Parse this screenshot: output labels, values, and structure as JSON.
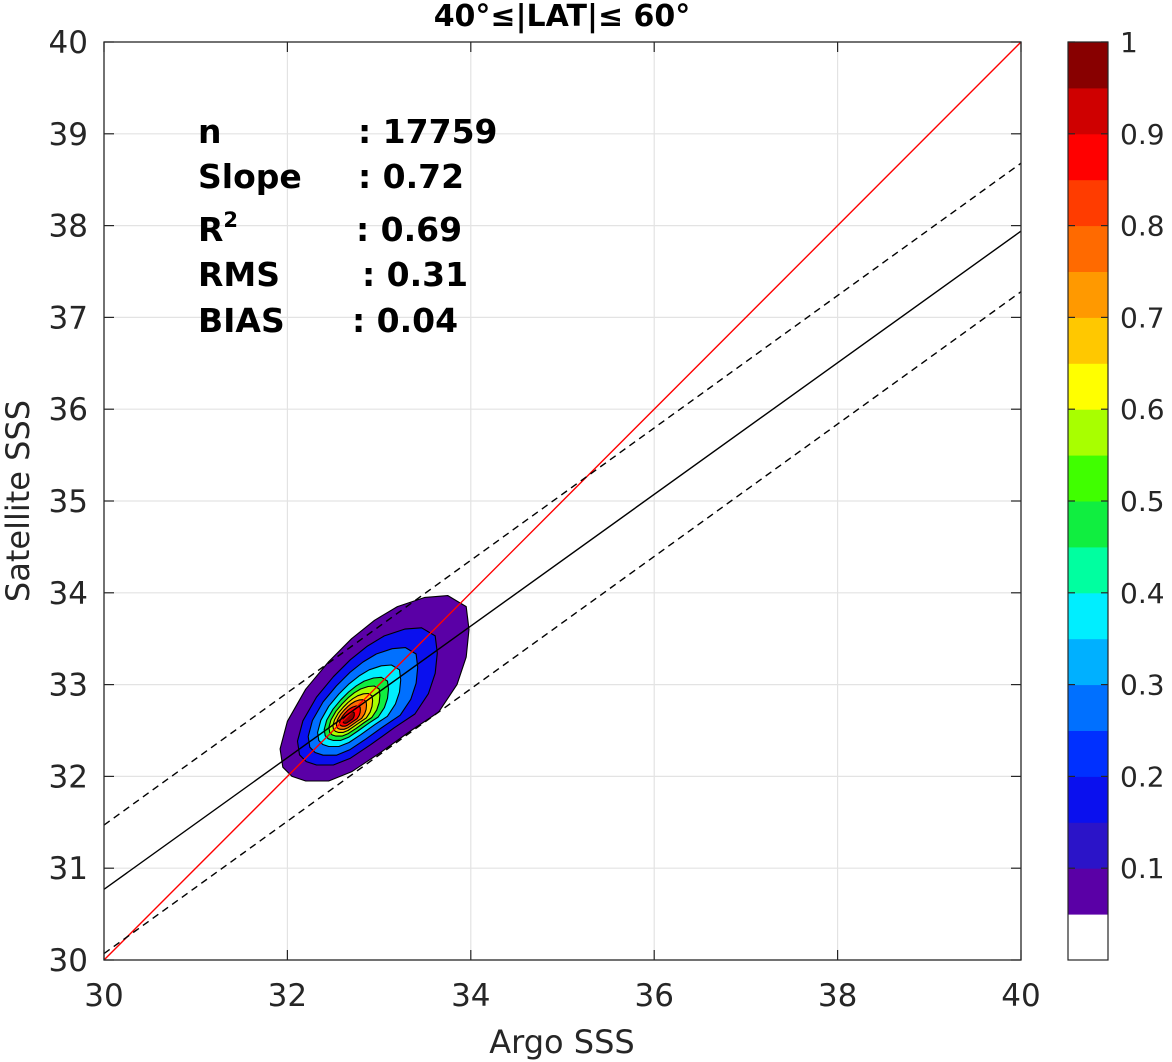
{
  "chart_data": {
    "type": "contour",
    "title": "40°≤|LAT|≤ 60°",
    "xlabel": "Argo SSS",
    "ylabel": "Satellite SSS",
    "xlim": [
      30,
      40
    ],
    "ylim": [
      30,
      40
    ],
    "xticks": [
      "30",
      "32",
      "34",
      "36",
      "38",
      "40"
    ],
    "yticks": [
      "30",
      "31",
      "32",
      "33",
      "34",
      "35",
      "36",
      "37",
      "38",
      "39",
      "40"
    ],
    "grid": true,
    "stats": [
      {
        "label": "n",
        "value": ": 17759"
      },
      {
        "label": "Slope",
        "value": ": 0.72"
      },
      {
        "label": "R",
        "label_sup": "2",
        "value": ": 0.69"
      },
      {
        "label": "RMS",
        "value": ": 0.31"
      },
      {
        "label": "BIAS",
        "value": ": 0.04"
      }
    ],
    "lines": [
      {
        "name": "one-to-one",
        "color": "#ff0000",
        "style": "solid",
        "points": [
          [
            30,
            30
          ],
          [
            40,
            40
          ]
        ]
      },
      {
        "name": "regression",
        "color": "#000000",
        "style": "solid",
        "points": [
          [
            30,
            30.77
          ],
          [
            40,
            37.94
          ]
        ]
      },
      {
        "name": "upper-bound",
        "color": "#000000",
        "style": "dashed",
        "points": [
          [
            30,
            31.47
          ],
          [
            40,
            38.68
          ]
        ]
      },
      {
        "name": "lower-bound",
        "color": "#000000",
        "style": "dashed",
        "points": [
          [
            30,
            30.07
          ],
          [
            40,
            37.28
          ]
        ]
      }
    ],
    "density": {
      "center": [
        32.65,
        32.62
      ],
      "levels": [
        0.05,
        0.1,
        0.15,
        0.2,
        0.25,
        0.3,
        0.35,
        0.4,
        0.45,
        0.5,
        0.55,
        0.6,
        0.65,
        0.7,
        0.75,
        0.8,
        0.85,
        0.9,
        0.95
      ],
      "outer_contour": [
        [
          32.05,
          32.0
        ],
        [
          32.2,
          31.95
        ],
        [
          32.45,
          31.95
        ],
        [
          32.7,
          32.05
        ],
        [
          33.0,
          32.25
        ],
        [
          33.35,
          32.5
        ],
        [
          33.65,
          32.7
        ],
        [
          33.85,
          33.0
        ],
        [
          33.95,
          33.3
        ],
        [
          33.98,
          33.6
        ],
        [
          33.95,
          33.85
        ],
        [
          33.75,
          33.97
        ],
        [
          33.5,
          33.95
        ],
        [
          33.2,
          33.85
        ],
        [
          32.95,
          33.7
        ],
        [
          32.7,
          33.5
        ],
        [
          32.45,
          33.25
        ],
        [
          32.2,
          32.95
        ],
        [
          32.0,
          32.6
        ],
        [
          31.92,
          32.3
        ],
        [
          31.95,
          32.1
        ]
      ],
      "inner_rings": [
        {
          "level": 0.15,
          "scale": 0.74
        },
        {
          "level": 0.25,
          "scale": 0.58
        },
        {
          "level": 0.35,
          "scale": 0.44
        },
        {
          "level": 0.45,
          "scale": 0.34
        },
        {
          "level": 0.55,
          "scale": 0.27
        },
        {
          "level": 0.65,
          "scale": 0.21
        },
        {
          "level": 0.75,
          "scale": 0.16
        },
        {
          "level": 0.85,
          "scale": 0.11
        },
        {
          "level": 0.95,
          "scale": 0.06
        }
      ]
    },
    "colorbar": {
      "ticks": [
        "0.1",
        "0.2",
        "0.3",
        "0.4",
        "0.5",
        "0.6",
        "0.7",
        "0.8",
        "0.9",
        "1"
      ],
      "tick_values": [
        0.1,
        0.2,
        0.3,
        0.4,
        0.5,
        0.6,
        0.7,
        0.8,
        0.9,
        1.0
      ],
      "colors": [
        "#ffffff",
        "#5a00a6",
        "#2b14c8",
        "#0a10ee",
        "#0030ff",
        "#0070ff",
        "#00b0ff",
        "#00eeff",
        "#00ffa0",
        "#10ee40",
        "#40ff00",
        "#a8ff00",
        "#ffff00",
        "#ffc800",
        "#ff9900",
        "#ff6a00",
        "#ff3c00",
        "#ff0000",
        "#cf0000",
        "#880000"
      ]
    }
  }
}
